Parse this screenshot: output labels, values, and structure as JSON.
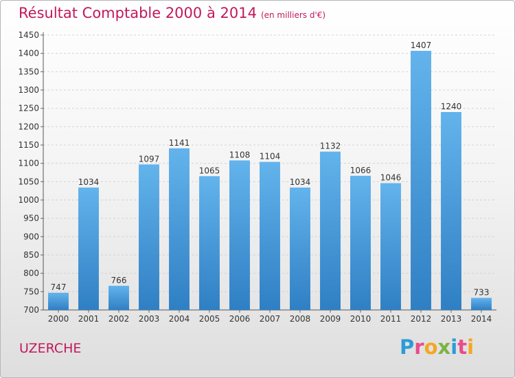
{
  "title": "Résultat Comptable 2000 à 2014",
  "subtitle": "(en milliers d'€)",
  "place": "UZERCHE",
  "brand": {
    "letters": [
      "P",
      "r",
      "o",
      "x",
      "i",
      "t",
      "i"
    ],
    "colors": [
      "#2b9cd8",
      "#e84c8b",
      "#f5a623",
      "#7cb342",
      "#2b9cd8",
      "#e84c8b",
      "#f5a623"
    ]
  },
  "colors": {
    "bar_top": "#63b3ec",
    "bar_bottom": "#2f7fc4",
    "title": "#c2185b"
  },
  "chart_data": {
    "type": "bar",
    "categories": [
      "2000",
      "2001",
      "2002",
      "2003",
      "2004",
      "2005",
      "2006",
      "2007",
      "2008",
      "2009",
      "2010",
      "2011",
      "2012",
      "2013",
      "2014"
    ],
    "values": [
      747,
      1034,
      766,
      1097,
      1141,
      1065,
      1108,
      1104,
      1034,
      1132,
      1066,
      1046,
      1407,
      1240,
      733
    ],
    "ylim": [
      700,
      1450
    ],
    "yticks": [
      700,
      750,
      800,
      850,
      900,
      950,
      1000,
      1050,
      1100,
      1150,
      1200,
      1250,
      1300,
      1350,
      1400,
      1450
    ],
    "grid": true,
    "legend": "none"
  }
}
